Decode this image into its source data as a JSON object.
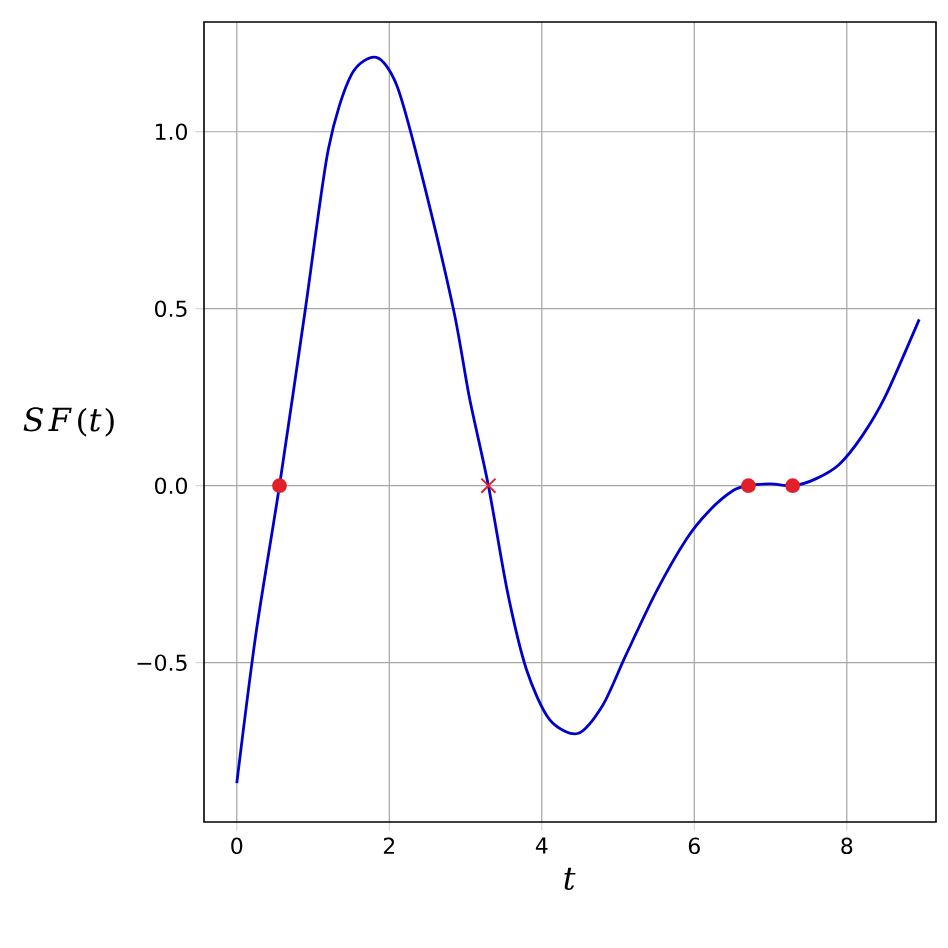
{
  "chart_data": {
    "type": "line",
    "xlabel": "t",
    "ylabel": "SF(t)",
    "xlim": [
      -0.43,
      9.17
    ],
    "ylim": [
      -0.95,
      1.31
    ],
    "xticks": [
      0,
      2,
      4,
      6,
      8
    ],
    "yticks": [
      {
        "value": -0.5,
        "label": "−0.5"
      },
      {
        "value": 0,
        "label": "0.0"
      },
      {
        "value": 0.5,
        "label": "0.5"
      },
      {
        "value": 1,
        "label": "1.0"
      }
    ],
    "grid": true,
    "series": [
      {
        "color": "#0000cc",
        "marker": "none",
        "x": [
          0,
          0.25,
          0.56,
          0.9,
          1.2,
          1.5,
          1.83,
          2.1,
          2.4,
          2.84,
          3.05,
          3.3,
          3.55,
          3.8,
          4.1,
          4.47,
          4.8,
          5.1,
          5.5,
          5.9,
          6.2,
          6.5,
          6.7,
          7.0,
          7.3,
          7.6,
          7.9,
          8.2,
          8.5,
          8.95
        ],
        "values": [
          -0.84,
          -0.42,
          0,
          0.5,
          0.95,
          1.16,
          1.21,
          1.13,
          0.9,
          0.5,
          0.25,
          0,
          -0.3,
          -0.52,
          -0.66,
          -0.7,
          -0.62,
          -0.48,
          -0.3,
          -0.15,
          -0.07,
          -0.015,
          0,
          0.005,
          0,
          0.02,
          0.06,
          0.14,
          0.25,
          0.47
        ]
      },
      {
        "type": "scatter",
        "color": "#e0202a",
        "marker": "circle",
        "x": [
          0.56,
          6.71,
          7.29
        ],
        "values": [
          0,
          0,
          0
        ]
      },
      {
        "type": "scatter",
        "color": "#e0202a",
        "marker": "cross",
        "x": [
          3.3
        ],
        "values": [
          0
        ]
      }
    ]
  }
}
